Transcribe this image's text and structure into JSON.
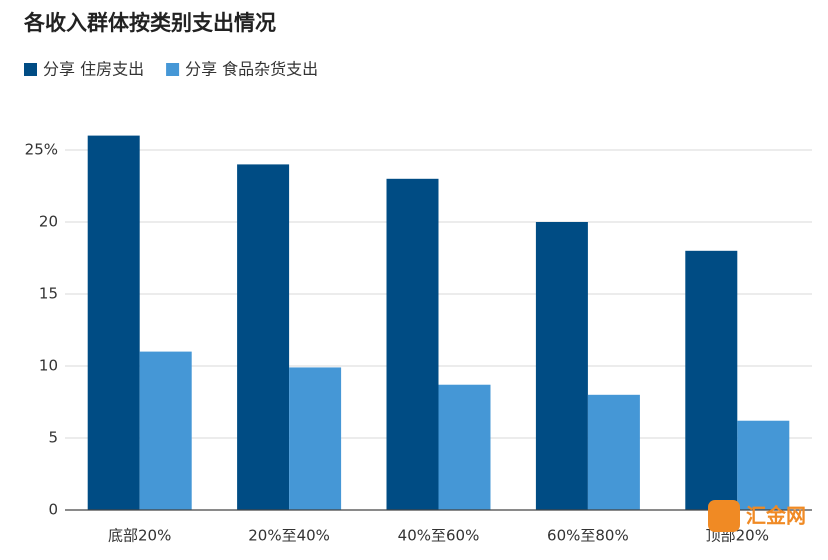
{
  "chart_data": {
    "type": "bar",
    "title": "各收入群体按类别支出情况",
    "categories": [
      "底部20%",
      "20%至40%",
      "40%至60%",
      "60%至80%",
      "顶部20%"
    ],
    "series": [
      {
        "name": "分享 住房支出",
        "color": "#004c84",
        "values": [
          26,
          24,
          23,
          20,
          18
        ]
      },
      {
        "name": "分享 食品杂货支出",
        "color": "#4597d6",
        "values": [
          11,
          9.9,
          8.7,
          8,
          6.2
        ]
      }
    ],
    "ylim": [
      0,
      27
    ],
    "yticks": [
      0,
      5,
      10,
      15,
      20,
      {
        "value": 25,
        "label": "25%"
      }
    ],
    "grid": true,
    "watermark": "汇金网"
  }
}
